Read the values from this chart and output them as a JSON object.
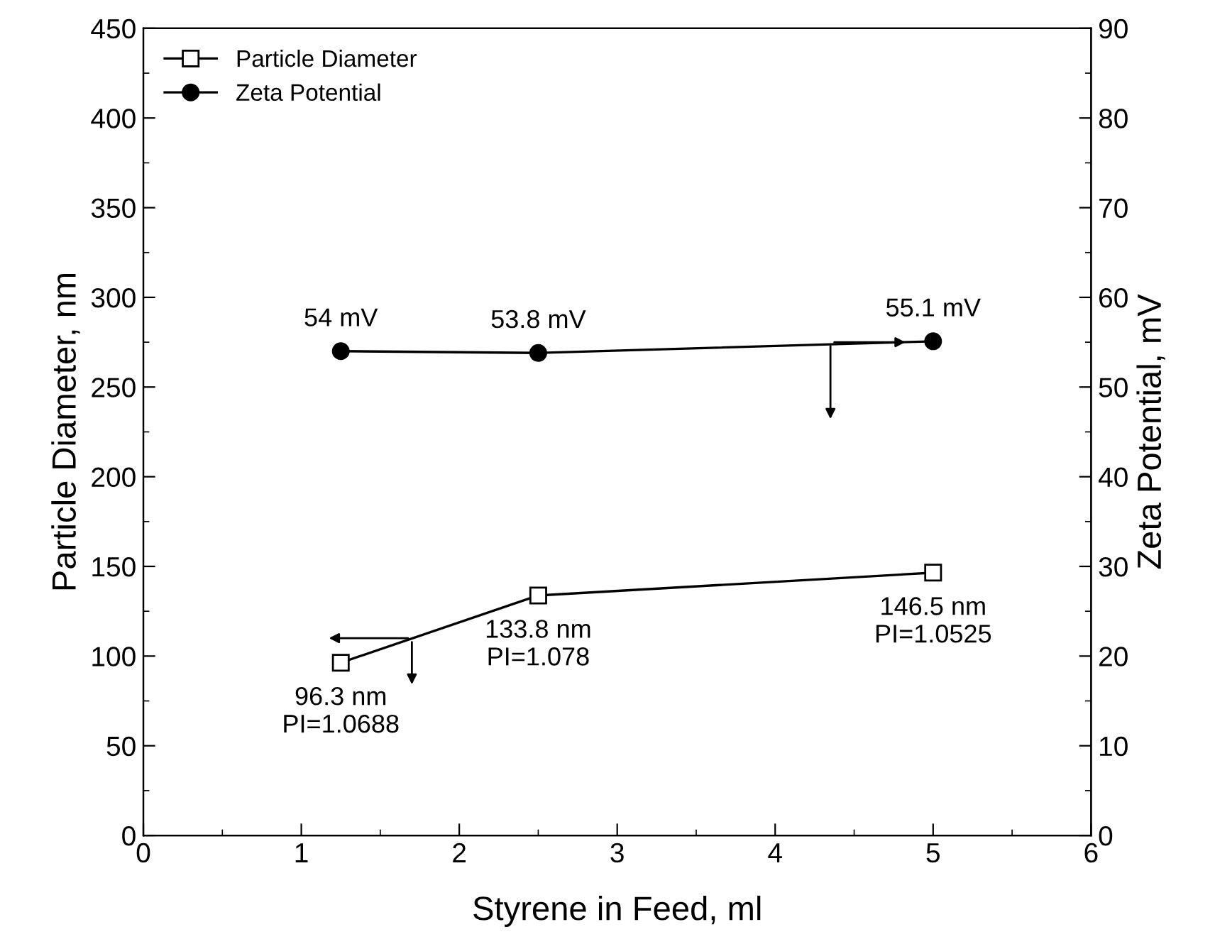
{
  "chart_data": {
    "type": "line",
    "xlabel": "Styrene in Feed, ml",
    "ylabel": "Particle Diameter, nm",
    "y2label": "Zeta Potential, mV",
    "xlim": [
      0,
      6
    ],
    "xticks": [
      0,
      1,
      2,
      3,
      4,
      5,
      6
    ],
    "ylim": [
      0,
      450
    ],
    "yticks": [
      0,
      50,
      100,
      150,
      200,
      250,
      300,
      350,
      400,
      450
    ],
    "y2lim": [
      0,
      90
    ],
    "y2ticks": [
      0,
      10,
      20,
      30,
      40,
      50,
      60,
      70,
      80,
      90
    ],
    "grid": false,
    "legend": "top left",
    "line_style": "solid",
    "x": [
      1.25,
      2.5,
      5
    ],
    "series": [
      {
        "name": "Particle Diameter",
        "color": "#000000",
        "marker": "square",
        "values": [
          96.3,
          133.8,
          146.5
        ],
        "value_labels": [
          "96.3 nm\nPI=1.0688",
          "133.8 nm\nPI=1.078",
          "146.5 nm\nPI=1.0525"
        ]
      },
      {
        "name": "Zeta Potential",
        "color": "#000000",
        "marker": "circle",
        "axis": "y2",
        "values": [
          54,
          53.8,
          55.1
        ],
        "value_labels": [
          "54 mV",
          "53.8 mV",
          "55.1 mV"
        ]
      }
    ]
  }
}
